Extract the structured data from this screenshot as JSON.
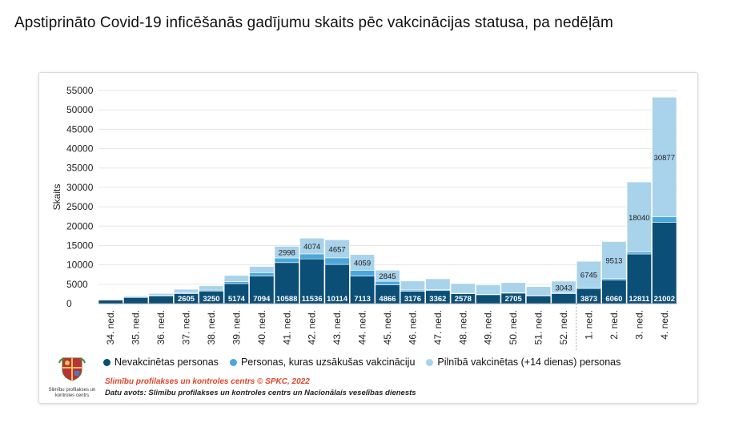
{
  "page": {
    "title": "Apstiprināto Covid-19 inficēšanās gadījumu skaits pēc vakcinācijas statusa, pa nedēļām"
  },
  "logo": {
    "caption": "Slimību profilakses un kontroles centrs"
  },
  "legend": {
    "items": [
      {
        "label": "Nevakcinētas personas",
        "color": "#0b4f77"
      },
      {
        "label": "Personas, kuras uzsākušas vakcināciju",
        "color": "#4aa7dc"
      },
      {
        "label": "Pilnībā vakcinētas (+14 dienas) personas",
        "color": "#a9d3ea"
      }
    ]
  },
  "footer": {
    "credit": "Slimību profilakses un kontroles centrs © SPKC, 2022",
    "source": "Datu avots: Slimību profilakses un kontroles centrs un Nacionālais veselības dienests"
  },
  "chart_data": {
    "type": "bar",
    "stacked": true,
    "ylabel": "Skaits",
    "ylim": [
      0,
      55000
    ],
    "yticks": [
      0,
      5000,
      10000,
      15000,
      20000,
      25000,
      30000,
      35000,
      40000,
      45000,
      50000,
      55000
    ],
    "grid": true,
    "categories": [
      "34. ned.",
      "35. ned.",
      "36. ned.",
      "37. ned.",
      "38. ned.",
      "39. ned.",
      "40. ned.",
      "41. ned.",
      "42. ned.",
      "43. ned.",
      "44. ned.",
      "45. ned.",
      "46. ned.",
      "47. ned.",
      "48. ned.",
      "49. ned.",
      "50. ned.",
      "51. ned.",
      "52. ned.",
      "1. ned.",
      "2. ned.",
      "3. ned.",
      "4. ned."
    ],
    "series": [
      {
        "name": "Nevakcinētas personas",
        "color": "#0b4f77",
        "values": [
          900,
          1600,
          2000,
          2605,
          3250,
          5174,
          7094,
          10588,
          11536,
          10114,
          7113,
          4866,
          3176,
          3362,
          2578,
          2300,
          2705,
          2000,
          2600,
          3873,
          6060,
          12811,
          21002
        ]
      },
      {
        "name": "Personas, kuras uzsākušas vakcināciju",
        "color": "#4aa7dc",
        "values": [
          50,
          80,
          120,
          200,
          250,
          500,
          900,
          1200,
          1300,
          1700,
          1500,
          900,
          350,
          250,
          100,
          100,
          100,
          100,
          150,
          300,
          450,
          550,
          1400
        ]
      },
      {
        "name": "Pilnībā vakcinētas (+14 dienas) personas",
        "color": "#a9d3ea",
        "values": [
          200,
          300,
          500,
          900,
          1100,
          1600,
          1600,
          2998,
          4074,
          4657,
          4059,
          2845,
          2300,
          2800,
          2500,
          2400,
          2600,
          2300,
          3043,
          6745,
          9513,
          18040,
          30877
        ]
      }
    ],
    "labels": {
      "bottom": [
        "",
        "",
        "",
        "2605",
        "3250",
        "5174",
        "7094",
        "10588",
        "11536",
        "10114",
        "7113",
        "4866",
        "3176",
        "3362",
        "2578",
        "",
        "2705",
        "",
        "",
        "3873",
        "6060",
        "12811",
        "21002"
      ],
      "top": [
        "",
        "",
        "",
        "",
        "",
        "",
        "",
        "2998",
        "4074",
        "4657",
        "4059",
        "2845",
        "",
        "",
        "",
        "",
        "",
        "",
        "3043",
        "6745",
        "9513",
        "18040",
        "30877"
      ]
    }
  }
}
